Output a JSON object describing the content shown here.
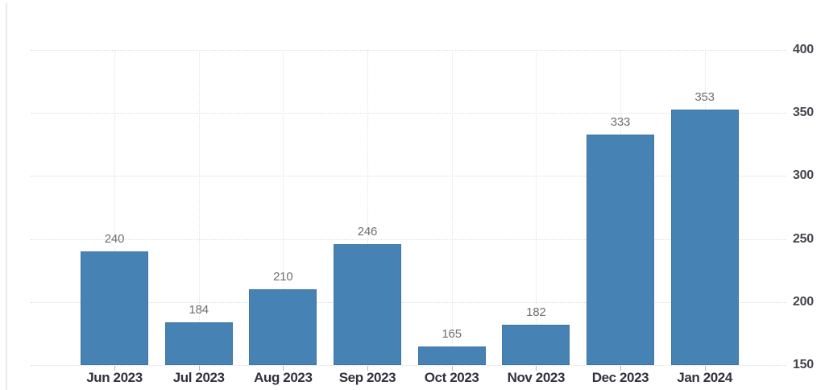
{
  "chart_data": {
    "type": "bar",
    "categories": [
      "Jun 2023",
      "Jul 2023",
      "Aug 2023",
      "Sep 2023",
      "Oct 2023",
      "Nov 2023",
      "Dec 2023",
      "Jan 2024"
    ],
    "values": [
      240,
      184,
      210,
      246,
      165,
      182,
      333,
      353
    ],
    "value_labels": [
      "240",
      "184",
      "210",
      "246",
      "165",
      "182",
      "333",
      "353"
    ],
    "title": "",
    "xlabel": "",
    "ylabel": "",
    "ylim": [
      150,
      400
    ],
    "y_ticks": [
      150,
      200,
      250,
      300,
      350,
      400
    ],
    "y_tick_labels": [
      "150",
      "200",
      "250",
      "300",
      "350",
      "400"
    ],
    "y_axis_side": "right",
    "grid": true,
    "legend": false,
    "colors": {
      "bar_fill": "#4682b4",
      "value_label": "#6f6f6f",
      "x_axis_label": "#32323f",
      "y_axis_label": "#45454e",
      "gridline": "#dcdcdc"
    }
  }
}
